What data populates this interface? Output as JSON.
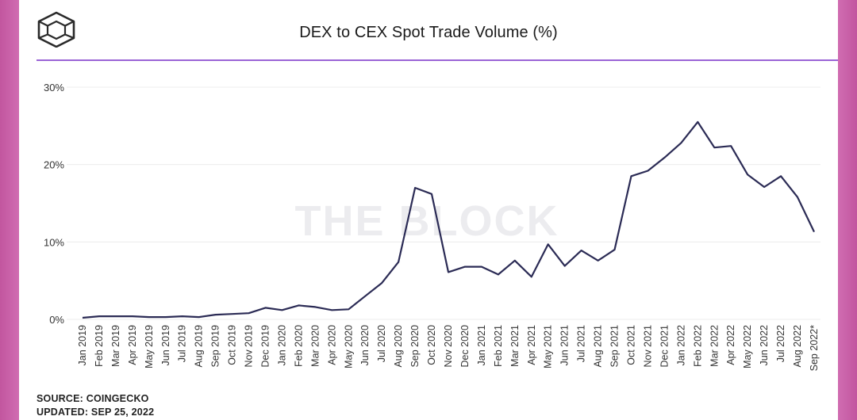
{
  "header": {
    "title": "DEX to CEX Spot Trade Volume (%)",
    "logo_icon": "the-block-cube-icon"
  },
  "watermark": "THE BLOCK",
  "footer": {
    "source": "SOURCE: COINGECKO",
    "updated": "UPDATED: SEP 25, 2022"
  },
  "colors": {
    "line": "#2b2b55",
    "rule": "#9a64d6",
    "background": "#d26fb4"
  },
  "chart_data": {
    "type": "line",
    "title": "DEX to CEX Spot Trade Volume (%)",
    "ylim": [
      0,
      30
    ],
    "yticks": [
      0,
      10,
      20,
      30
    ],
    "ytick_labels": [
      "0%",
      "10%",
      "20%",
      "30%"
    ],
    "grid": true,
    "categories": [
      "Jan 2019",
      "Feb 2019",
      "Mar 2019",
      "Apr 2019",
      "May 2019",
      "Jun 2019",
      "Jul 2019",
      "Aug 2019",
      "Sep 2019",
      "Oct 2019",
      "Nov 2019",
      "Dec 2019",
      "Jan 2020",
      "Feb 2020",
      "Mar 2020",
      "Apr 2020",
      "May 2020",
      "Jun 2020",
      "Jul 2020",
      "Aug 2020",
      "Sep 2020",
      "Oct 2020",
      "Nov 2020",
      "Dec 2020",
      "Jan 2021",
      "Feb 2021",
      "Mar 2021",
      "Apr 2021",
      "May 2021",
      "Jun 2021",
      "Jul 2021",
      "Aug 2021",
      "Sep 2021",
      "Oct 2021",
      "Nov 2021",
      "Dec 2021",
      "Jan 2022",
      "Feb 2022",
      "Mar 2022",
      "Apr 2022",
      "May 2022",
      "Jun 2022",
      "Jul 2022",
      "Aug 2022",
      "Sep 2022*"
    ],
    "series": [
      {
        "values": [
          0.2,
          0.4,
          0.4,
          0.4,
          0.3,
          0.3,
          0.4,
          0.3,
          0.6,
          0.7,
          0.8,
          1.5,
          1.2,
          1.8,
          1.6,
          1.2,
          1.3,
          3.0,
          4.7,
          7.4,
          17.0,
          16.2,
          6.1,
          6.8,
          6.8,
          5.8,
          7.6,
          5.5,
          9.7,
          6.9,
          8.9,
          7.6,
          9.0,
          18.5,
          19.2,
          20.9,
          22.8,
          25.5,
          22.2,
          22.4,
          18.7,
          17.1,
          18.5,
          15.8,
          11.3
        ]
      }
    ]
  }
}
